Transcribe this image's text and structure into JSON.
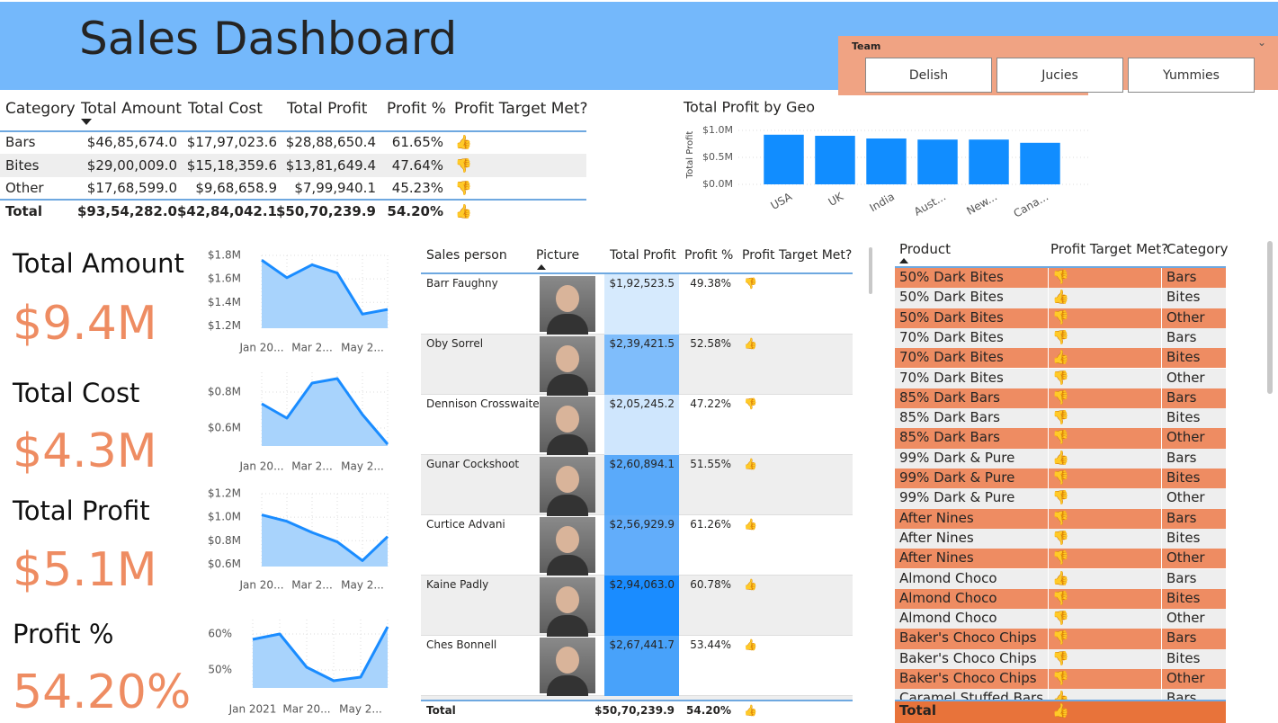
{
  "header": {
    "title": "Sales Dashboard"
  },
  "slicer": {
    "title": "Team",
    "options": [
      "Delish",
      "Jucies",
      "Yummies"
    ]
  },
  "category_table": {
    "columns": [
      "Category",
      "Total Amount",
      "Total Cost",
      "Total Profit",
      "Profit %",
      "Profit Target Met?"
    ],
    "rows": [
      [
        "Bars",
        "$46,85,674.0",
        "$17,97,023.6",
        "$28,88,650.4",
        "61.65%",
        "👍"
      ],
      [
        "Bites",
        "$29,00,009.0",
        "$15,18,359.6",
        "$13,81,649.4",
        "47.64%",
        "👎"
      ],
      [
        "Other",
        "$17,68,599.0",
        "$9,68,658.9",
        "$7,99,940.1",
        "45.23%",
        "👎"
      ]
    ],
    "total": [
      "Total",
      "$93,54,282.0",
      "$42,84,042.1",
      "$50,70,239.9",
      "54.20%",
      "👍"
    ]
  },
  "kpis": [
    {
      "label": "Total Amount",
      "value": "$9.4M"
    },
    {
      "label": "Total Cost",
      "value": "$4.3M"
    },
    {
      "label": "Total Profit",
      "value": "$5.1M"
    },
    {
      "label": "Profit %",
      "value": "54.20%"
    }
  ],
  "sales_table": {
    "columns": [
      "Sales person",
      "Picture",
      "Total Profit",
      "Profit %",
      "Profit Target Met?"
    ],
    "rows": [
      [
        "Barr Faughny",
        "$1,92,523.5",
        "49.38%",
        "👎"
      ],
      [
        "Oby Sorrel",
        "$2,39,421.5",
        "52.58%",
        "👍"
      ],
      [
        "Dennison Crosswaite",
        "$2,05,245.2",
        "47.22%",
        "👎"
      ],
      [
        "Gunar Cockshoot",
        "$2,60,894.1",
        "51.55%",
        "👍"
      ],
      [
        "Curtice Advani",
        "$2,56,929.9",
        "61.26%",
        "👍"
      ],
      [
        "Kaine Padly",
        "$2,94,063.0",
        "60.78%",
        "👍"
      ],
      [
        "Ches Bonnell",
        "$2,67,441.7",
        "53.44%",
        "👍"
      ]
    ],
    "total": [
      "Total",
      "$50,70,239.9",
      "54.20%",
      "👍"
    ]
  },
  "product_table": {
    "columns": [
      "Product",
      "Profit Target Met?",
      "Category"
    ],
    "rows": [
      [
        "50% Dark Bites",
        "👎",
        "Bars"
      ],
      [
        "50% Dark Bites",
        "👍",
        "Bites"
      ],
      [
        "50% Dark Bites",
        "👎",
        "Other"
      ],
      [
        "70% Dark Bites",
        "👎",
        "Bars"
      ],
      [
        "70% Dark Bites",
        "👍",
        "Bites"
      ],
      [
        "70% Dark Bites",
        "👎",
        "Other"
      ],
      [
        "85% Dark Bars",
        "👎",
        "Bars"
      ],
      [
        "85% Dark Bars",
        "👎",
        "Bites"
      ],
      [
        "85% Dark Bars",
        "👎",
        "Other"
      ],
      [
        "99% Dark & Pure",
        "👍",
        "Bars"
      ],
      [
        "99% Dark & Pure",
        "👎",
        "Bites"
      ],
      [
        "99% Dark & Pure",
        "👎",
        "Other"
      ],
      [
        "After Nines",
        "👎",
        "Bars"
      ],
      [
        "After Nines",
        "👎",
        "Bites"
      ],
      [
        "After Nines",
        "👎",
        "Other"
      ],
      [
        "Almond Choco",
        "👍",
        "Bars"
      ],
      [
        "Almond Choco",
        "👎",
        "Bites"
      ],
      [
        "Almond Choco",
        "👎",
        "Other"
      ],
      [
        "Baker's Choco Chips",
        "👎",
        "Bars"
      ],
      [
        "Baker's Choco Chips",
        "👎",
        "Bites"
      ],
      [
        "Baker's Choco Chips",
        "👎",
        "Other"
      ],
      [
        "Caramel Stuffed Bars",
        "👍",
        "Bars"
      ]
    ],
    "total": [
      "Total",
      "👍"
    ]
  },
  "chart_data": [
    {
      "type": "bar",
      "title": "Total Profit by Geo",
      "y_label": "Total Profit",
      "categories": [
        "USA",
        "UK",
        "India",
        "Aust...",
        "New...",
        "Cana..."
      ],
      "values": [
        920000,
        900000,
        850000,
        830000,
        830000,
        770000
      ],
      "ylim": [
        0,
        1100000
      ],
      "yticks": [
        {
          "value": 0,
          "label": "$0.0M"
        },
        {
          "value": 500000,
          "label": "$0.5M"
        },
        {
          "value": 1000000,
          "label": "$1.0M"
        }
      ],
      "color": "#118dff",
      "grid": true
    },
    {
      "type": "area",
      "categories": [
        "Jan 20...",
        null,
        "Mar 2...",
        null,
        "May 2...",
        null
      ],
      "values": [
        1760000,
        1610000,
        1720000,
        1650000,
        1300000,
        1340000
      ],
      "ylim": [
        1180000,
        1800000
      ],
      "yticks": [
        {
          "value": 1200000,
          "label": "$1.2M"
        },
        {
          "value": 1400000,
          "label": "$1.4M"
        },
        {
          "value": 1600000,
          "label": "$1.6M"
        },
        {
          "value": 1800000,
          "label": "$1.8M"
        }
      ],
      "color": "#1a8cff",
      "fill": "#a8d3fc",
      "grid": true
    },
    {
      "type": "area",
      "categories": [
        "Jan 20...",
        null,
        "Mar 2...",
        null,
        "May 2...",
        null
      ],
      "values": [
        735000,
        655000,
        850000,
        875000,
        675000,
        510000
      ],
      "ylim": [
        500000,
        910000
      ],
      "yticks": [
        {
          "value": 600000,
          "label": "$0.6M"
        },
        {
          "value": 800000,
          "label": "$0.8M"
        }
      ],
      "color": "#1a8cff",
      "fill": "#a8d3fc",
      "grid": true
    },
    {
      "type": "area",
      "categories": [
        "Jan 20...",
        null,
        "Mar 2...",
        null,
        "May 2...",
        null
      ],
      "values": [
        1020000,
        965000,
        870000,
        790000,
        630000,
        835000
      ],
      "ylim": [
        580000,
        1200000
      ],
      "yticks": [
        {
          "value": 600000,
          "label": "$0.6M"
        },
        {
          "value": 800000,
          "label": "$0.8M"
        },
        {
          "value": 1000000,
          "label": "$1.0M"
        },
        {
          "value": 1200000,
          "label": "$1.2M"
        }
      ],
      "color": "#1a8cff",
      "fill": "#a8d3fc",
      "grid": true
    },
    {
      "type": "area",
      "categories": [
        "Jan 2021",
        null,
        "Mar 20...",
        null,
        "May 2...",
        null
      ],
      "values": [
        58.5,
        60,
        50.75,
        47,
        48,
        62
      ],
      "ylim": [
        45,
        64
      ],
      "yticks": [
        {
          "value": 50,
          "label": "50%"
        },
        {
          "value": 60,
          "label": "60%"
        }
      ],
      "color": "#1a8cff",
      "fill": "#a8d3fc",
      "grid": true
    }
  ]
}
